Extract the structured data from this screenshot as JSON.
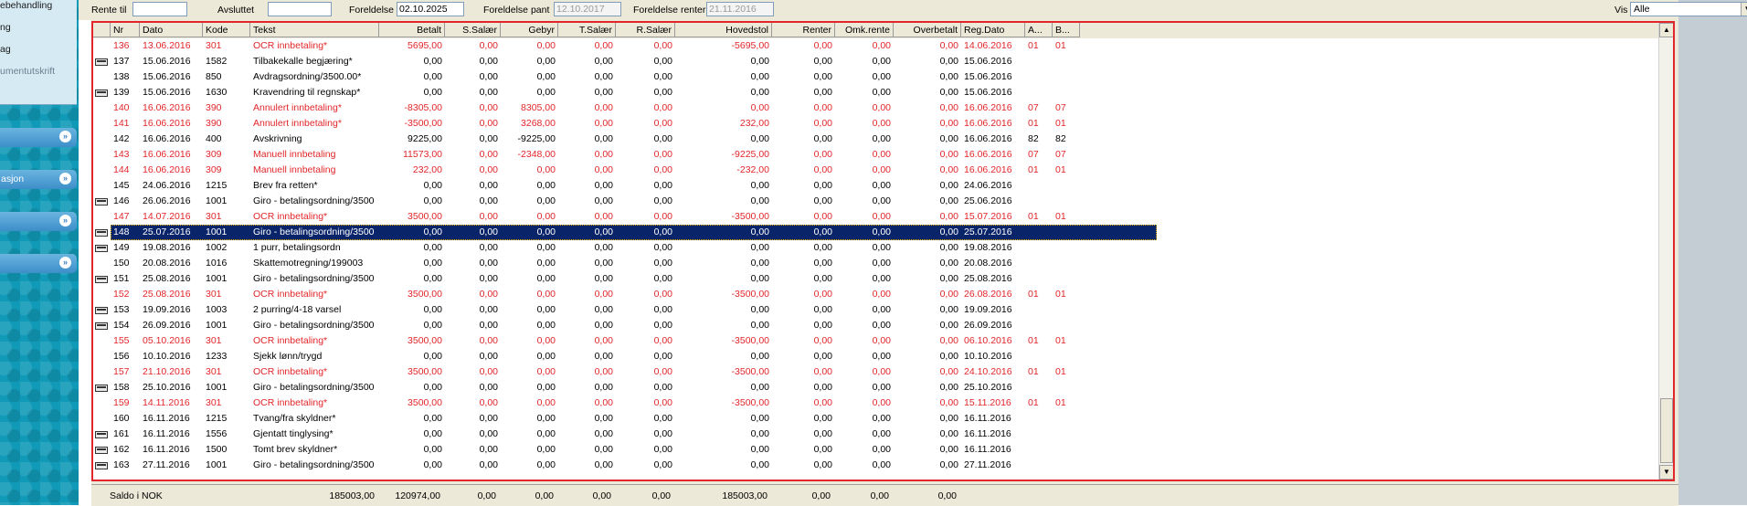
{
  "nav": {
    "menu_items": [
      "ebehandling",
      "ng",
      "ag",
      "umentutskrift"
    ],
    "sections": [
      "",
      "asjon",
      "",
      ""
    ]
  },
  "filter": {
    "rente_til_label": "Rente til",
    "rente_til_value": "",
    "avsluttet_label": "Avsluttet",
    "avsluttet_value": "",
    "foreldelse_label": "Foreldelse",
    "foreldelse_value": "02.10.2025",
    "foreldelse_pant_label": "Foreldelse pant",
    "foreldelse_pant_value": "12.10.2017",
    "foreldelse_renter_label": "Foreldelse renter",
    "foreldelse_renter_value": "21.11.2016",
    "vis_label": "Vis",
    "vis_value": "Alle"
  },
  "columns": [
    "Nr",
    "Dato",
    "Kode",
    "Tekst",
    "Betalt",
    "S.Salær",
    "Gebyr",
    "T.Salær",
    "R.Salær",
    "Hovedstol",
    "Renter",
    "Omk.rente",
    "Overbetalt",
    "Reg.Dato",
    "A...",
    "B..."
  ],
  "rows": [
    {
      "icon": false,
      "red": true,
      "cells": [
        "136",
        "13.06.2016",
        "301",
        "OCR innbetaling*",
        "5695,00",
        "0,00",
        "0,00",
        "0,00",
        "0,00",
        "-5695,00",
        "0,00",
        "0,00",
        "0,00",
        "14.06.2016",
        "01",
        "01"
      ]
    },
    {
      "icon": true,
      "red": false,
      "cells": [
        "137",
        "15.06.2016",
        "1582",
        "Tilbakekalle begjæring*",
        "0,00",
        "0,00",
        "0,00",
        "0,00",
        "0,00",
        "0,00",
        "0,00",
        "0,00",
        "0,00",
        "15.06.2016",
        "",
        ""
      ]
    },
    {
      "icon": false,
      "red": false,
      "cells": [
        "138",
        "15.06.2016",
        "850",
        "Avdragsordning/3500.00*",
        "0,00",
        "0,00",
        "0,00",
        "0,00",
        "0,00",
        "0,00",
        "0,00",
        "0,00",
        "0,00",
        "15.06.2016",
        "",
        ""
      ]
    },
    {
      "icon": true,
      "red": false,
      "cells": [
        "139",
        "15.06.2016",
        "1630",
        "Kravendring til regnskap*",
        "0,00",
        "0,00",
        "0,00",
        "0,00",
        "0,00",
        "0,00",
        "0,00",
        "0,00",
        "0,00",
        "15.06.2016",
        "",
        ""
      ]
    },
    {
      "icon": false,
      "red": true,
      "cells": [
        "140",
        "16.06.2016",
        "390",
        "Annulert innbetaling*",
        "-8305,00",
        "0,00",
        "8305,00",
        "0,00",
        "0,00",
        "0,00",
        "0,00",
        "0,00",
        "0,00",
        "16.06.2016",
        "07",
        "07"
      ]
    },
    {
      "icon": false,
      "red": true,
      "cells": [
        "141",
        "16.06.2016",
        "390",
        "Annulert innbetaling*",
        "-3500,00",
        "0,00",
        "3268,00",
        "0,00",
        "0,00",
        "232,00",
        "0,00",
        "0,00",
        "0,00",
        "16.06.2016",
        "01",
        "01"
      ]
    },
    {
      "icon": false,
      "red": false,
      "cells": [
        "142",
        "16.06.2016",
        "400",
        "Avskrivning",
        "9225,00",
        "0,00",
        "-9225,00",
        "0,00",
        "0,00",
        "0,00",
        "0,00",
        "0,00",
        "0,00",
        "16.06.2016",
        "82",
        "82"
      ]
    },
    {
      "icon": false,
      "red": true,
      "cells": [
        "143",
        "16.06.2016",
        "309",
        "Manuell innbetaling",
        "11573,00",
        "0,00",
        "-2348,00",
        "0,00",
        "0,00",
        "-9225,00",
        "0,00",
        "0,00",
        "0,00",
        "16.06.2016",
        "07",
        "07"
      ]
    },
    {
      "icon": false,
      "red": true,
      "cells": [
        "144",
        "16.06.2016",
        "309",
        "Manuell innbetaling",
        "232,00",
        "0,00",
        "0,00",
        "0,00",
        "0,00",
        "-232,00",
        "0,00",
        "0,00",
        "0,00",
        "16.06.2016",
        "01",
        "01"
      ]
    },
    {
      "icon": false,
      "red": false,
      "cells": [
        "145",
        "24.06.2016",
        "1215",
        "Brev fra retten*",
        "0,00",
        "0,00",
        "0,00",
        "0,00",
        "0,00",
        "0,00",
        "0,00",
        "0,00",
        "0,00",
        "24.06.2016",
        "",
        ""
      ]
    },
    {
      "icon": true,
      "red": false,
      "cells": [
        "146",
        "26.06.2016",
        "1001",
        "Giro - betalingsordning/3500",
        "0,00",
        "0,00",
        "0,00",
        "0,00",
        "0,00",
        "0,00",
        "0,00",
        "0,00",
        "0,00",
        "25.06.2016",
        "",
        ""
      ]
    },
    {
      "icon": false,
      "red": true,
      "cells": [
        "147",
        "14.07.2016",
        "301",
        "OCR innbetaling*",
        "3500,00",
        "0,00",
        "0,00",
        "0,00",
        "0,00",
        "-3500,00",
        "0,00",
        "0,00",
        "0,00",
        "15.07.2016",
        "01",
        "01"
      ]
    },
    {
      "icon": true,
      "red": false,
      "selected": true,
      "cells": [
        "148",
        "25.07.2016",
        "1001",
        "Giro - betalingsordning/3500",
        "0,00",
        "0,00",
        "0,00",
        "0,00",
        "0,00",
        "0,00",
        "0,00",
        "0,00",
        "0,00",
        "25.07.2016",
        "",
        ""
      ]
    },
    {
      "icon": true,
      "red": false,
      "cells": [
        "149",
        "19.08.2016",
        "1002",
        "1 purr, betalingsordn",
        "0,00",
        "0,00",
        "0,00",
        "0,00",
        "0,00",
        "0,00",
        "0,00",
        "0,00",
        "0,00",
        "19.08.2016",
        "",
        ""
      ]
    },
    {
      "icon": false,
      "red": false,
      "cells": [
        "150",
        "20.08.2016",
        "1016",
        "Skattemotregning/199003",
        "0,00",
        "0,00",
        "0,00",
        "0,00",
        "0,00",
        "0,00",
        "0,00",
        "0,00",
        "0,00",
        "20.08.2016",
        "",
        ""
      ]
    },
    {
      "icon": true,
      "red": false,
      "cells": [
        "151",
        "25.08.2016",
        "1001",
        "Giro - betalingsordning/3500",
        "0,00",
        "0,00",
        "0,00",
        "0,00",
        "0,00",
        "0,00",
        "0,00",
        "0,00",
        "0,00",
        "25.08.2016",
        "",
        ""
      ]
    },
    {
      "icon": false,
      "red": true,
      "cells": [
        "152",
        "25.08.2016",
        "301",
        "OCR innbetaling*",
        "3500,00",
        "0,00",
        "0,00",
        "0,00",
        "0,00",
        "-3500,00",
        "0,00",
        "0,00",
        "0,00",
        "26.08.2016",
        "01",
        "01"
      ]
    },
    {
      "icon": true,
      "red": false,
      "cells": [
        "153",
        "19.09.2016",
        "1003",
        "2 purring/4-18 varsel",
        "0,00",
        "0,00",
        "0,00",
        "0,00",
        "0,00",
        "0,00",
        "0,00",
        "0,00",
        "0,00",
        "19.09.2016",
        "",
        ""
      ]
    },
    {
      "icon": true,
      "red": false,
      "cells": [
        "154",
        "26.09.2016",
        "1001",
        "Giro - betalingsordning/3500",
        "0,00",
        "0,00",
        "0,00",
        "0,00",
        "0,00",
        "0,00",
        "0,00",
        "0,00",
        "0,00",
        "26.09.2016",
        "",
        ""
      ]
    },
    {
      "icon": false,
      "red": true,
      "cells": [
        "155",
        "05.10.2016",
        "301",
        "OCR innbetaling*",
        "3500,00",
        "0,00",
        "0,00",
        "0,00",
        "0,00",
        "-3500,00",
        "0,00",
        "0,00",
        "0,00",
        "06.10.2016",
        "01",
        "01"
      ]
    },
    {
      "icon": false,
      "red": false,
      "cells": [
        "156",
        "10.10.2016",
        "1233",
        "Sjekk lønn/trygd",
        "0,00",
        "0,00",
        "0,00",
        "0,00",
        "0,00",
        "0,00",
        "0,00",
        "0,00",
        "0,00",
        "10.10.2016",
        "",
        ""
      ]
    },
    {
      "icon": false,
      "red": true,
      "cells": [
        "157",
        "21.10.2016",
        "301",
        "OCR innbetaling*",
        "3500,00",
        "0,00",
        "0,00",
        "0,00",
        "0,00",
        "-3500,00",
        "0,00",
        "0,00",
        "0,00",
        "24.10.2016",
        "01",
        "01"
      ]
    },
    {
      "icon": true,
      "red": false,
      "cells": [
        "158",
        "25.10.2016",
        "1001",
        "Giro - betalingsordning/3500",
        "0,00",
        "0,00",
        "0,00",
        "0,00",
        "0,00",
        "0,00",
        "0,00",
        "0,00",
        "0,00",
        "25.10.2016",
        "",
        ""
      ]
    },
    {
      "icon": false,
      "red": true,
      "cells": [
        "159",
        "14.11.2016",
        "301",
        "OCR innbetaling*",
        "3500,00",
        "0,00",
        "0,00",
        "0,00",
        "0,00",
        "-3500,00",
        "0,00",
        "0,00",
        "0,00",
        "15.11.2016",
        "01",
        "01"
      ]
    },
    {
      "icon": false,
      "red": false,
      "cells": [
        "160",
        "16.11.2016",
        "1215",
        "Tvang/fra skyldner*",
        "0,00",
        "0,00",
        "0,00",
        "0,00",
        "0,00",
        "0,00",
        "0,00",
        "0,00",
        "0,00",
        "16.11.2016",
        "",
        ""
      ]
    },
    {
      "icon": true,
      "red": false,
      "cells": [
        "161",
        "16.11.2016",
        "1556",
        "Gjentatt tinglysing*",
        "0,00",
        "0,00",
        "0,00",
        "0,00",
        "0,00",
        "0,00",
        "0,00",
        "0,00",
        "0,00",
        "16.11.2016",
        "",
        ""
      ]
    },
    {
      "icon": true,
      "red": false,
      "cells": [
        "162",
        "16.11.2016",
        "1500",
        "Tomt brev skyldner*",
        "0,00",
        "0,00",
        "0,00",
        "0,00",
        "0,00",
        "0,00",
        "0,00",
        "0,00",
        "0,00",
        "16.11.2016",
        "",
        ""
      ]
    },
    {
      "icon": true,
      "red": false,
      "cells": [
        "163",
        "27.11.2016",
        "1001",
        "Giro - betalingsordning/3500",
        "0,00",
        "0,00",
        "0,00",
        "0,00",
        "0,00",
        "0,00",
        "0,00",
        "0,00",
        "0,00",
        "27.11.2016",
        "",
        ""
      ]
    }
  ],
  "footer": {
    "label": "Saldo i NOK",
    "values": [
      "185003,00",
      "120974,00",
      "0,00",
      "0,00",
      "0,00",
      "0,00",
      "185003,00",
      "0,00",
      "0,00",
      "0,00"
    ]
  },
  "colors": {
    "red_text": "#e2262a",
    "selection": "#0a246a",
    "grid_border": "#e2262a",
    "sidebar": "#119ab8"
  }
}
